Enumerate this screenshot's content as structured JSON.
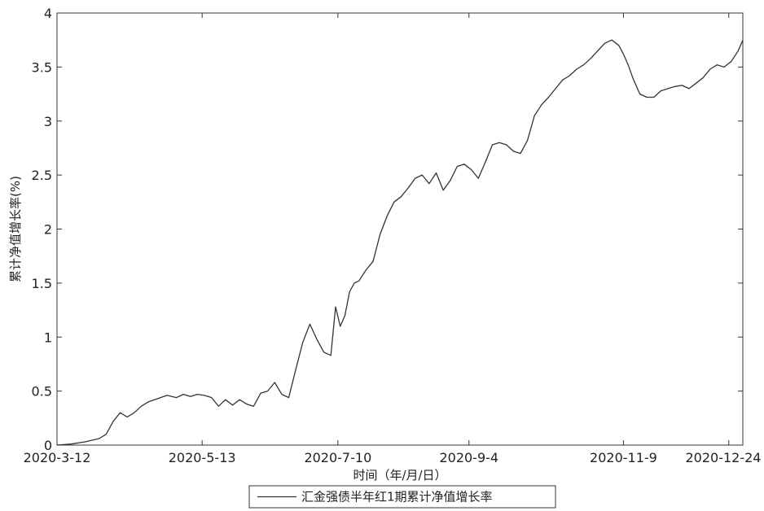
{
  "chart_data": {
    "type": "line",
    "title": "",
    "xlabel": "时间（年/月/日）",
    "ylabel": "累计净值增长率(%)",
    "ylim": [
      0,
      4
    ],
    "yticks": [
      "0",
      "0.5",
      "1",
      "1.5",
      "2",
      "2.5",
      "3",
      "3.5",
      "4"
    ],
    "xticks": [
      "2020-3-12",
      "2020-5-13",
      "2020-7-10",
      "2020-9-4",
      "2020-11-9",
      "2020-12-24"
    ],
    "xtick_dates": [
      "2020-03-12",
      "2020-05-13",
      "2020-07-10",
      "2020-09-04",
      "2020-11-09",
      "2020-12-24"
    ],
    "xlim": [
      "2020-03-12",
      "2020-12-30"
    ],
    "grid": false,
    "legend_position": "bottom-center",
    "line_color": "#333333",
    "series": [
      {
        "name": "汇金强债半年红1期累计净值增长率",
        "x": [
          "2020-03-12",
          "2020-03-18",
          "2020-03-24",
          "2020-03-30",
          "2020-04-02",
          "2020-04-05",
          "2020-04-08",
          "2020-04-11",
          "2020-04-14",
          "2020-04-17",
          "2020-04-20",
          "2020-04-24",
          "2020-04-28",
          "2020-05-02",
          "2020-05-05",
          "2020-05-08",
          "2020-05-11",
          "2020-05-14",
          "2020-05-17",
          "2020-05-20",
          "2020-05-23",
          "2020-05-26",
          "2020-05-29",
          "2020-06-01",
          "2020-06-04",
          "2020-06-07",
          "2020-06-10",
          "2020-06-13",
          "2020-06-16",
          "2020-06-19",
          "2020-06-22",
          "2020-06-25",
          "2020-06-28",
          "2020-07-01",
          "2020-07-04",
          "2020-07-07",
          "2020-07-09",
          "2020-07-11",
          "2020-07-13",
          "2020-07-15",
          "2020-07-17",
          "2020-07-19",
          "2020-07-22",
          "2020-07-25",
          "2020-07-28",
          "2020-07-31",
          "2020-08-03",
          "2020-08-06",
          "2020-08-09",
          "2020-08-12",
          "2020-08-15",
          "2020-08-18",
          "2020-08-21",
          "2020-08-24",
          "2020-08-27",
          "2020-08-30",
          "2020-09-02",
          "2020-09-05",
          "2020-09-08",
          "2020-09-11",
          "2020-09-14",
          "2020-09-17",
          "2020-09-20",
          "2020-09-23",
          "2020-09-26",
          "2020-09-29",
          "2020-10-02",
          "2020-10-05",
          "2020-10-08",
          "2020-10-11",
          "2020-10-14",
          "2020-10-17",
          "2020-10-20",
          "2020-10-23",
          "2020-10-26",
          "2020-10-29",
          "2020-11-01",
          "2020-11-04",
          "2020-11-07",
          "2020-11-09",
          "2020-11-11",
          "2020-11-13",
          "2020-11-16",
          "2020-11-19",
          "2020-11-22",
          "2020-11-25",
          "2020-11-28",
          "2020-12-01",
          "2020-12-04",
          "2020-12-07",
          "2020-12-10",
          "2020-12-13",
          "2020-12-16",
          "2020-12-19",
          "2020-12-22",
          "2020-12-25",
          "2020-12-28",
          "2020-12-30"
        ],
        "values": [
          0.0,
          0.01,
          0.03,
          0.06,
          0.1,
          0.22,
          0.3,
          0.26,
          0.3,
          0.36,
          0.4,
          0.43,
          0.46,
          0.44,
          0.47,
          0.45,
          0.47,
          0.46,
          0.44,
          0.36,
          0.42,
          0.37,
          0.42,
          0.38,
          0.36,
          0.48,
          0.5,
          0.58,
          0.47,
          0.44,
          0.7,
          0.95,
          1.12,
          0.98,
          0.86,
          0.83,
          1.28,
          1.1,
          1.2,
          1.42,
          1.5,
          1.52,
          1.62,
          1.7,
          1.95,
          2.12,
          2.25,
          2.3,
          2.38,
          2.47,
          2.5,
          2.42,
          2.52,
          2.36,
          2.45,
          2.58,
          2.6,
          2.55,
          2.47,
          2.62,
          2.78,
          2.8,
          2.78,
          2.72,
          2.7,
          2.82,
          3.05,
          3.15,
          3.22,
          3.3,
          3.38,
          3.42,
          3.48,
          3.52,
          3.58,
          3.65,
          3.72,
          3.75,
          3.7,
          3.62,
          3.52,
          3.4,
          3.25,
          3.22,
          3.22,
          3.28,
          3.3,
          3.32,
          3.33,
          3.3,
          3.35,
          3.4,
          3.48,
          3.52,
          3.5,
          3.55,
          3.65,
          3.75
        ]
      }
    ]
  }
}
